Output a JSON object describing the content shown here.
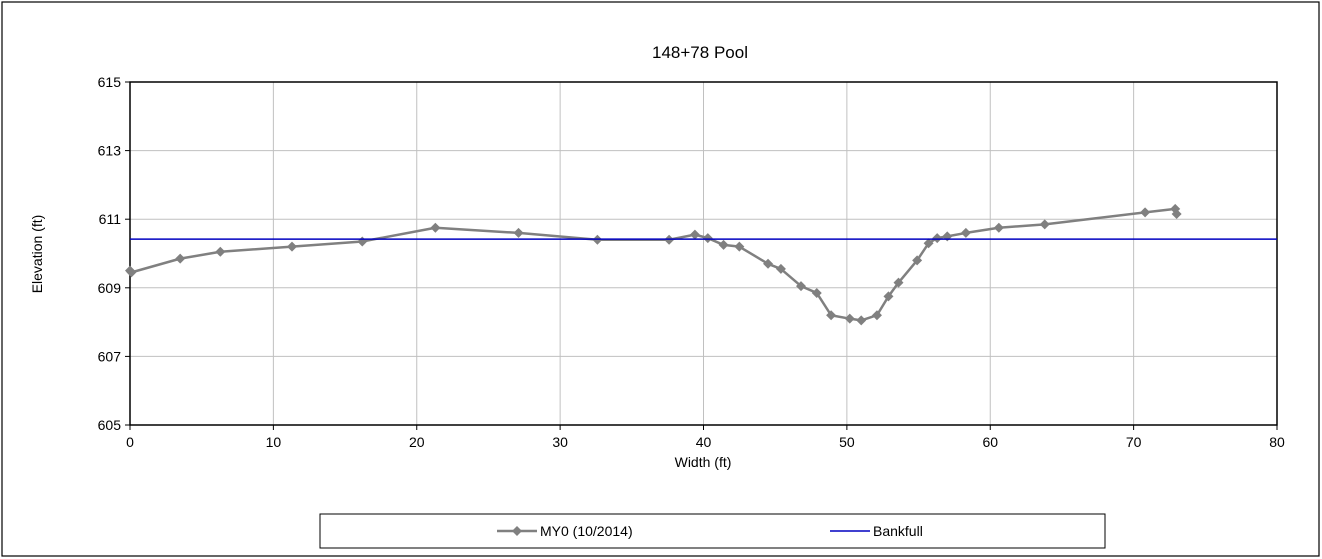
{
  "chart_data": {
    "type": "line",
    "title": "148+78 Pool",
    "xlabel": "Width (ft)",
    "ylabel": "Elevation (ft)",
    "xlim": [
      0,
      80
    ],
    "ylim": [
      605,
      615
    ],
    "x_ticks": [
      0,
      10,
      20,
      30,
      40,
      50,
      60,
      70,
      80
    ],
    "y_ticks": [
      605,
      607,
      609,
      611,
      613,
      615
    ],
    "grid": true,
    "legend_position": "bottom",
    "series": [
      {
        "name": "MY0 (10/2014)",
        "color": "#808080",
        "marker": "diamond",
        "x": [
          0.0,
          0.1,
          3.5,
          6.3,
          11.3,
          16.2,
          21.3,
          27.1,
          32.6,
          37.6,
          39.4,
          40.3,
          41.4,
          42.5,
          44.5,
          45.4,
          46.8,
          47.9,
          48.9,
          50.2,
          51.0,
          52.1,
          52.9,
          53.6,
          54.9,
          55.7,
          56.3,
          57.0,
          58.3,
          60.6,
          63.8,
          70.8,
          72.9,
          73.0
        ],
        "y": [
          609.5,
          609.45,
          609.85,
          610.05,
          610.2,
          610.35,
          610.75,
          610.6,
          610.4,
          610.4,
          610.55,
          610.45,
          610.25,
          610.2,
          609.7,
          609.55,
          609.05,
          608.85,
          608.2,
          608.1,
          608.05,
          608.2,
          608.75,
          609.15,
          609.8,
          610.3,
          610.45,
          610.5,
          610.6,
          610.75,
          610.85,
          611.2,
          611.3,
          611.15
        ]
      },
      {
        "name": "Bankfull",
        "color": "#0000c0",
        "marker": "none",
        "x": [
          0,
          80
        ],
        "y": [
          610.42,
          610.42
        ]
      }
    ]
  }
}
